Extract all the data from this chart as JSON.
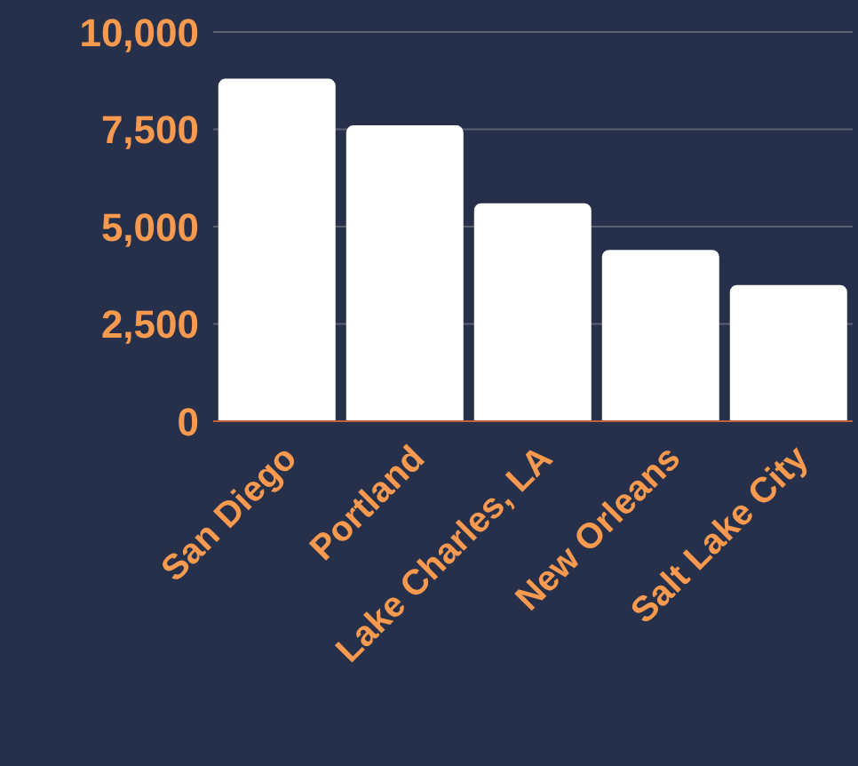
{
  "chart_data": {
    "type": "bar",
    "categories": [
      "San Diego",
      "Portland",
      "Lake Charles, LA",
      "New Orleans",
      "Salt Lake City"
    ],
    "values": [
      8800,
      7600,
      5600,
      4400,
      3500
    ],
    "color": "#ffffff",
    "ylim": [
      0,
      10000
    ],
    "yticks": [
      {
        "value": 0,
        "label": "0"
      },
      {
        "value": 2500,
        "label": "2,500"
      },
      {
        "value": 5000,
        "label": "5,000"
      },
      {
        "value": 7500,
        "label": "7,500"
      },
      {
        "value": 10000,
        "label": "10,000"
      }
    ],
    "grid": "y"
  }
}
